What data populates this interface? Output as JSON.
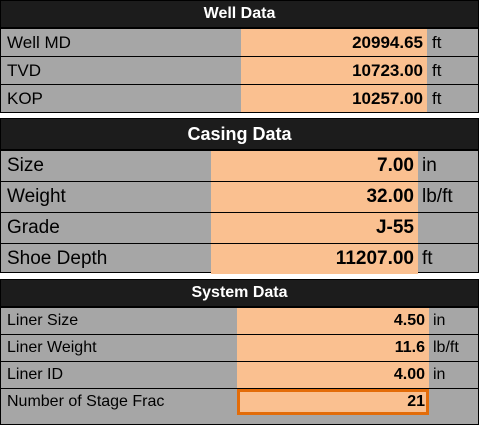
{
  "well": {
    "title": "Well Data",
    "rows": [
      {
        "label": "Well MD",
        "value": "20994.65",
        "unit": "ft"
      },
      {
        "label": "TVD",
        "value": "10723.00",
        "unit": "ft"
      },
      {
        "label": "KOP",
        "value": "10257.00",
        "unit": "ft"
      }
    ]
  },
  "casing": {
    "title": "Casing Data",
    "rows": [
      {
        "label": "Size",
        "value": "7.00",
        "unit": "in"
      },
      {
        "label": "Weight",
        "value": "32.00",
        "unit": "lb/ft"
      },
      {
        "label": "Grade",
        "value": "J-55",
        "unit": ""
      },
      {
        "label": "Shoe Depth",
        "value": "11207.00",
        "unit": "ft"
      }
    ]
  },
  "system": {
    "title": "System Data",
    "rows": [
      {
        "label": "Liner Size",
        "value": "4.50",
        "unit": "in"
      },
      {
        "label": "Liner Weight",
        "value": "11.6",
        "unit": "lb/ft"
      },
      {
        "label": "Liner ID",
        "value": "4.00",
        "unit": "in"
      },
      {
        "label": "Number of Stage Frac",
        "value": "21",
        "unit": ""
      }
    ]
  },
  "colors": {
    "header_bg": "#1c1c1c",
    "label_bg": "#a6a6a6",
    "value_bg": "#fac090",
    "active_border": "#e36c09"
  }
}
